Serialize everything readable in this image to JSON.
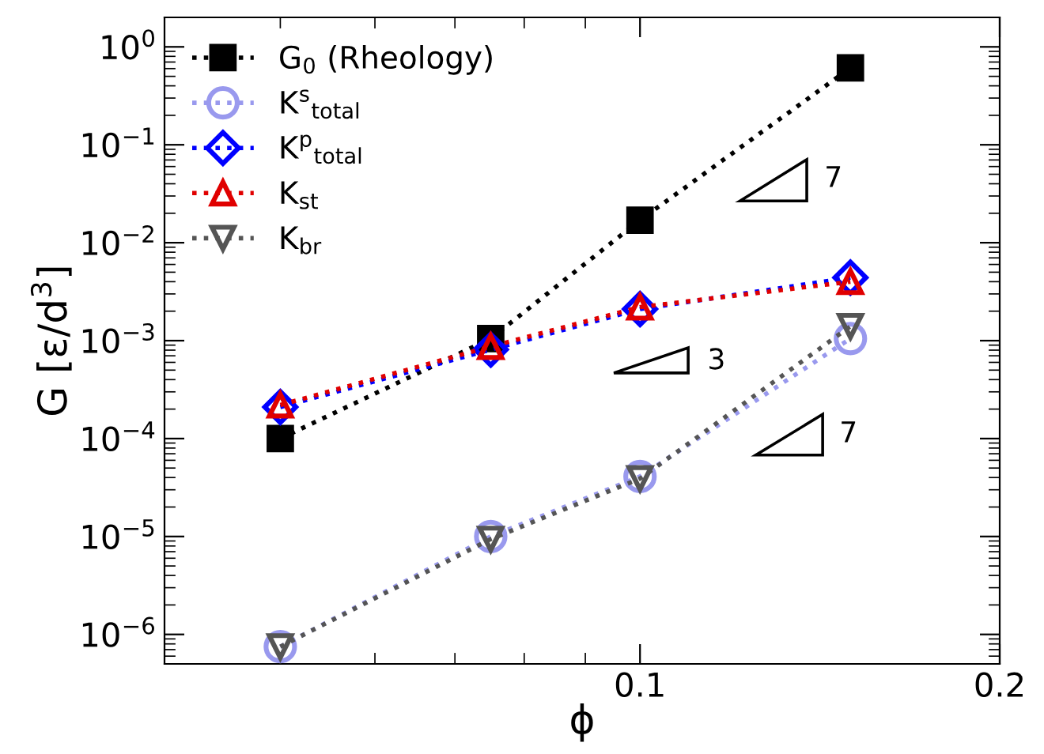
{
  "chart_data": {
    "type": "line",
    "xlabel": "ϕ",
    "ylabel": "G [ε/d$^{3}$]",
    "log": "xy",
    "x": [
      0.05,
      0.075,
      0.1,
      0.15
    ],
    "xlim": [
      0.04,
      0.2
    ],
    "xticks": [
      0.1,
      0.2
    ],
    "ylim": [
      5e-07,
      2
    ],
    "yticks": [
      {
        "value": 1e-06,
        "label": "10$^{−6}$"
      },
      {
        "value": 1e-05,
        "label": "10$^{−5}$"
      },
      {
        "value": 0.0001,
        "label": "10$^{−4}$"
      },
      {
        "value": 0.001,
        "label": "10$^{−3}$"
      },
      {
        "value": 0.01,
        "label": "10$^{−2}$"
      },
      {
        "value": 0.1,
        "label": "10$^{−1}$"
      },
      {
        "value": 1,
        "label": "10$^{0}$"
      }
    ],
    "line_style": "dotted",
    "legend": "top left",
    "grid": false,
    "series": [
      {
        "name": "G$_{0}$ (Rheology)",
        "color": "#000000",
        "marker": "square",
        "values": [
          0.0001,
          0.00105,
          0.017,
          0.61
        ]
      },
      {
        "name": "K$^{s}$$_{total}$",
        "color": "#9999ee",
        "marker": "circle",
        "values": [
          7.5e-07,
          1e-05,
          4.1e-05,
          0.00105
        ]
      },
      {
        "name": "K$^{p}$$_{total}$",
        "color": "#0000ff",
        "marker": "diamond",
        "values": [
          0.00021,
          0.00081,
          0.0021,
          0.0044
        ]
      },
      {
        "name": "K$_{st}$",
        "color": "#e00000",
        "marker": "triangle",
        "values": [
          0.00022,
          0.00087,
          0.0022,
          0.004
        ]
      },
      {
        "name": "K$_{br}$",
        "color": "#555555",
        "marker": "triangle_down",
        "values": [
          7.5e-07,
          9.4e-06,
          3.9e-05,
          0.0014
        ]
      }
    ],
    "annotations": [
      "7",
      "3",
      "7"
    ]
  }
}
